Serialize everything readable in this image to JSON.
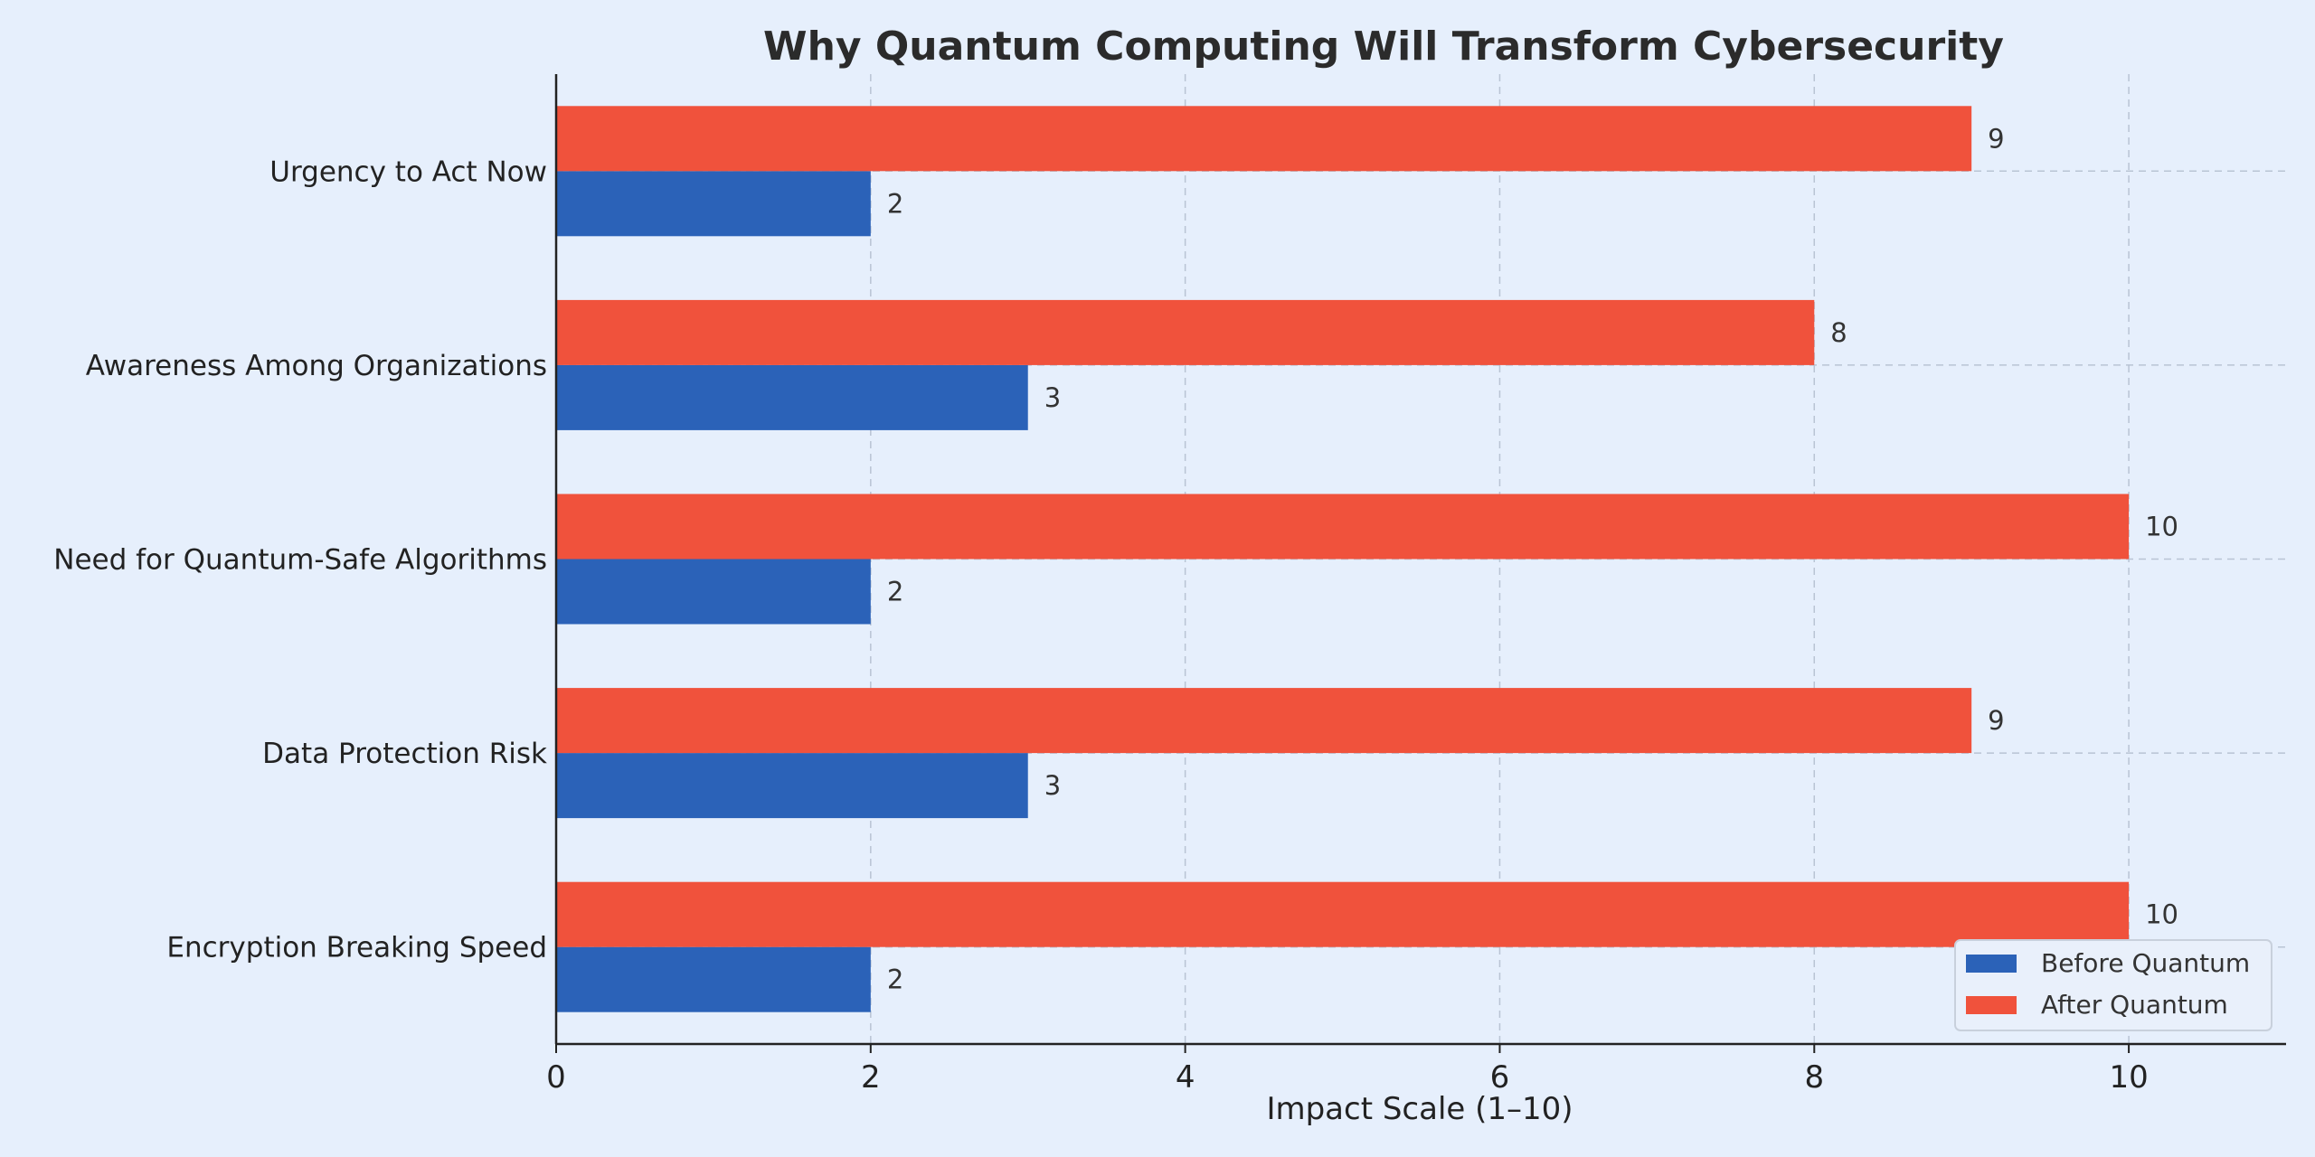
{
  "chart_data": {
    "type": "bar",
    "orientation": "horizontal",
    "title": "Why Quantum Computing Will Transform Cybersecurity",
    "xlabel": "Impact Scale (1–10)",
    "ylabel": "",
    "xlim": [
      0,
      11
    ],
    "xticks": [
      0,
      2,
      4,
      6,
      8,
      10
    ],
    "grid": true,
    "legend_position": "bottom-right",
    "categories": [
      "Encryption Breaking Speed",
      "Data Protection Risk",
      "Need for Quantum-Safe Algorithms",
      "Awareness Among Organizations",
      "Urgency to Act Now"
    ],
    "series": [
      {
        "name": "Before Quantum",
        "color": "#2b62b8",
        "values": [
          2,
          3,
          2,
          3,
          2
        ]
      },
      {
        "name": "After Quantum",
        "color": "#f0523c",
        "values": [
          10,
          9,
          10,
          8,
          9
        ]
      }
    ]
  }
}
